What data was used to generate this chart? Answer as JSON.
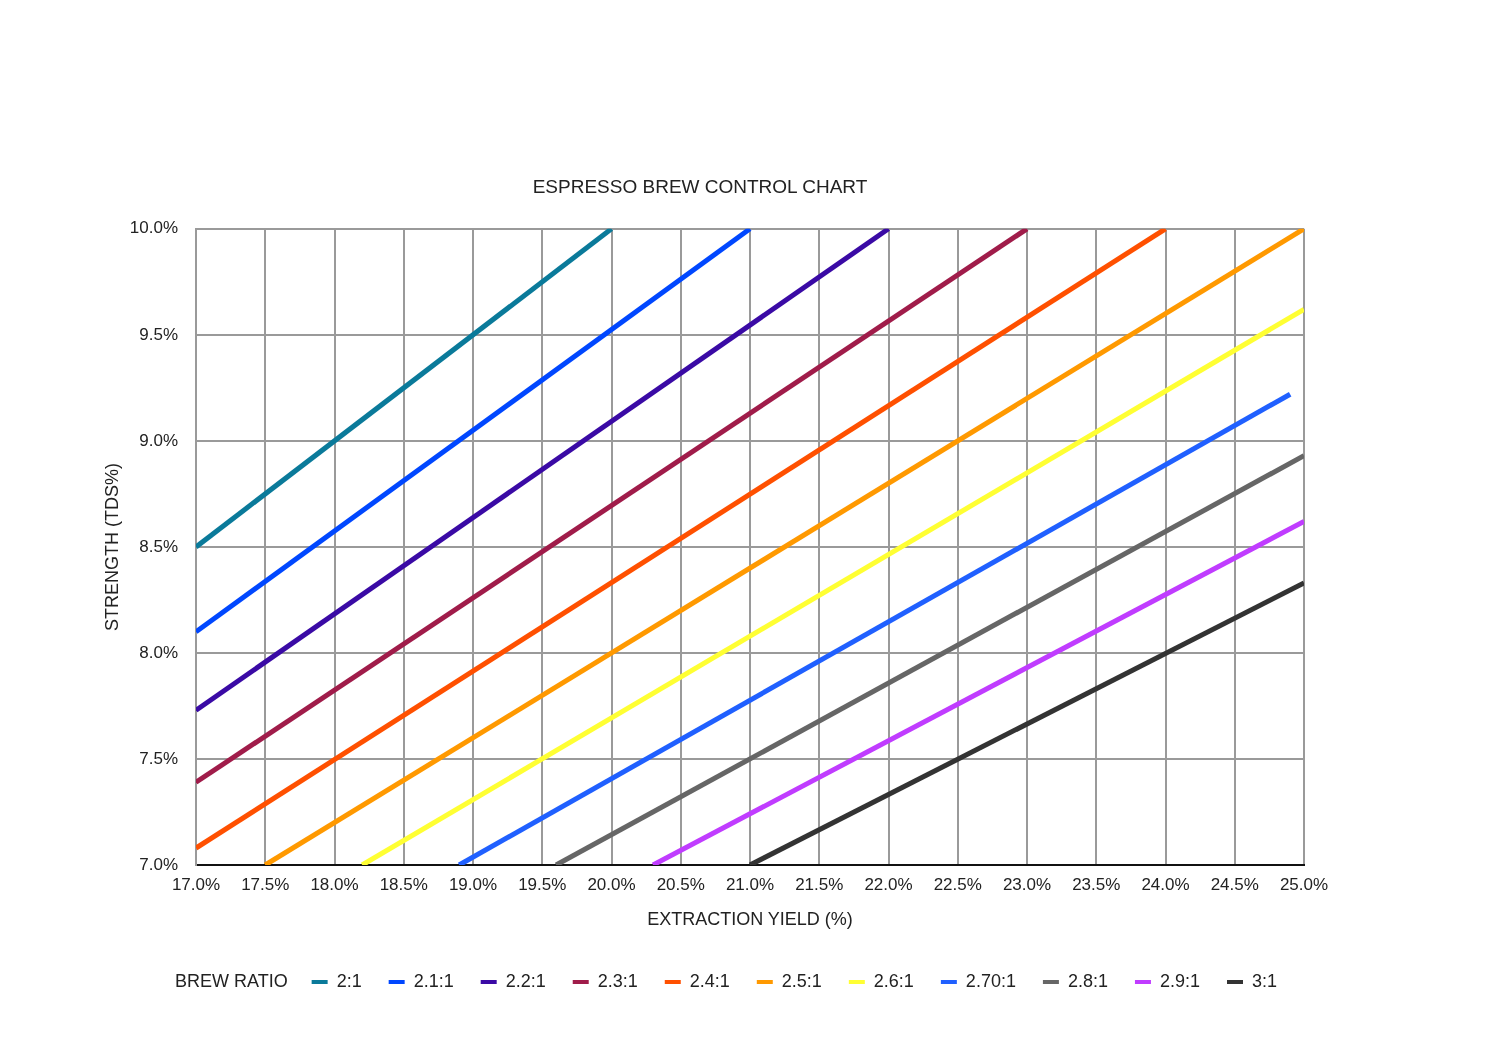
{
  "chart_data": {
    "type": "line",
    "title": "ESPRESSO BREW CONTROL CHART",
    "xlabel": "EXTRACTION YIELD (%)",
    "ylabel": "STRENGTH (TDS%)",
    "legend_title": "BREW RATIO",
    "legend": "bottom",
    "grid": true,
    "xlim": [
      17,
      25
    ],
    "ylim": [
      7,
      10
    ],
    "xticks": [
      {
        "value": 17,
        "label": "17.0%"
      },
      {
        "value": 17.5,
        "label": "17.5%"
      },
      {
        "value": 18,
        "label": "18.0%"
      },
      {
        "value": 18.5,
        "label": "18.5%"
      },
      {
        "value": 19,
        "label": "19.0%"
      },
      {
        "value": 19.5,
        "label": "19.5%"
      },
      {
        "value": 20,
        "label": "20.0%"
      },
      {
        "value": 20.5,
        "label": "20.5%"
      },
      {
        "value": 21,
        "label": "21.0%"
      },
      {
        "value": 21.5,
        "label": "21.5%"
      },
      {
        "value": 22,
        "label": "22.0%"
      },
      {
        "value": 22.5,
        "label": "22.5%"
      },
      {
        "value": 23,
        "label": "23.0%"
      },
      {
        "value": 23.5,
        "label": "23.5%"
      },
      {
        "value": 24,
        "label": "24.0%"
      },
      {
        "value": 24.5,
        "label": "24.5%"
      },
      {
        "value": 25,
        "label": "25.0%"
      }
    ],
    "yticks": [
      {
        "value": 7,
        "label": "7.0%"
      },
      {
        "value": 7.5,
        "label": "7.5%"
      },
      {
        "value": 8,
        "label": "8.0%"
      },
      {
        "value": 8.5,
        "label": "8.5%"
      },
      {
        "value": 9,
        "label": "9.0%"
      },
      {
        "value": 9.5,
        "label": "9.5%"
      },
      {
        "value": 10,
        "label": "10.0%"
      }
    ],
    "series": [
      {
        "name": "2:1",
        "color": "#0a7a9a",
        "x": [
          17,
          20
        ],
        "values": [
          8.5,
          10
        ]
      },
      {
        "name": "2.1:1",
        "color": "#0047ff",
        "x": [
          17,
          21
        ],
        "values": [
          8.1,
          10
        ]
      },
      {
        "name": "2.2:1",
        "color": "#3a0aa5",
        "x": [
          17,
          22
        ],
        "values": [
          7.73,
          10
        ]
      },
      {
        "name": "2.3:1",
        "color": "#a01c4a",
        "x": [
          17,
          23
        ],
        "values": [
          7.39,
          10
        ]
      },
      {
        "name": "2.4:1",
        "color": "#ff5000",
        "x": [
          17,
          24
        ],
        "values": [
          7.08,
          10
        ]
      },
      {
        "name": "2.5:1",
        "color": "#ff9900",
        "x": [
          17.5,
          25
        ],
        "values": [
          7,
          10
        ]
      },
      {
        "name": "2.6:1",
        "color": "#ffff33",
        "x": [
          18.2,
          25
        ],
        "values": [
          7,
          9.62
        ]
      },
      {
        "name": "2.70:1",
        "color": "#2060ff",
        "x": [
          18.9,
          24.9
        ],
        "values": [
          7,
          9.22
        ]
      },
      {
        "name": "2.8:1",
        "color": "#666666",
        "x": [
          19.6,
          25
        ],
        "values": [
          7,
          8.93
        ]
      },
      {
        "name": "2.9:1",
        "color": "#c03cff",
        "x": [
          20.3,
          25
        ],
        "values": [
          7,
          8.62
        ]
      },
      {
        "name": "3:1",
        "color": "#333333",
        "x": [
          21,
          25
        ],
        "values": [
          7,
          8.33
        ]
      }
    ]
  }
}
